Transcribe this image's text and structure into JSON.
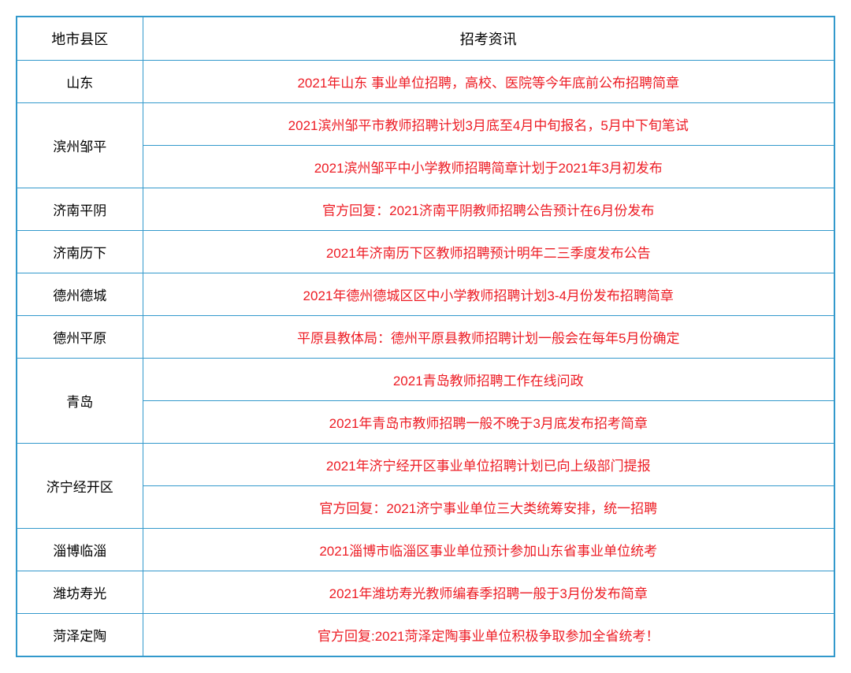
{
  "table": {
    "headers": {
      "region": "地市县区",
      "info": "招考资讯"
    },
    "colors": {
      "border": "#3399cc",
      "header_text": "#000000",
      "region_text": "#000000",
      "info_text": "#ed1c24",
      "background": "#ffffff"
    },
    "column_widths": {
      "region": 160
    },
    "font_sizes": {
      "header": 18,
      "cell": 17
    },
    "rows": [
      {
        "region": "山东",
        "rowspan": 1,
        "infos": [
          "2021年山东 事业单位招聘，高校、医院等今年底前公布招聘简章"
        ]
      },
      {
        "region": "滨州邹平",
        "rowspan": 2,
        "infos": [
          "2021滨州邹平市教师招聘计划3月底至4月中旬报名，5月中下旬笔试",
          "2021滨州邹平中小学教师招聘简章计划于2021年3月初发布"
        ]
      },
      {
        "region": "济南平阴",
        "rowspan": 1,
        "infos": [
          "官方回复：2021济南平阴教师招聘公告预计在6月份发布"
        ]
      },
      {
        "region": "济南历下",
        "rowspan": 1,
        "infos": [
          "2021年济南历下区教师招聘预计明年二三季度发布公告"
        ]
      },
      {
        "region": "德州德城",
        "rowspan": 1,
        "infos": [
          "2021年德州德城区区中小学教师招聘计划3-4月份发布招聘简章"
        ]
      },
      {
        "region": "德州平原",
        "rowspan": 1,
        "infos": [
          "平原县教体局：德州平原县教师招聘计划一般会在每年5月份确定"
        ]
      },
      {
        "region": "青岛",
        "rowspan": 2,
        "infos": [
          "2021青岛教师招聘工作在线问政",
          "2021年青岛市教师招聘一般不晚于3月底发布招考简章"
        ]
      },
      {
        "region": "济宁经开区",
        "rowspan": 2,
        "infos": [
          "2021年济宁经开区事业单位招聘计划已向上级部门提报",
          "官方回复：2021济宁事业单位三大类统筹安排，统一招聘"
        ]
      },
      {
        "region": "淄博临淄",
        "rowspan": 1,
        "infos": [
          "2021淄博市临淄区事业单位预计参加山东省事业单位统考"
        ]
      },
      {
        "region": "潍坊寿光",
        "rowspan": 1,
        "infos": [
          "2021年潍坊寿光教师编春季招聘一般于3月份发布简章"
        ]
      },
      {
        "region": "菏泽定陶",
        "rowspan": 1,
        "infos": [
          "官方回复:2021菏泽定陶事业单位积极争取参加全省统考！"
        ]
      }
    ]
  }
}
